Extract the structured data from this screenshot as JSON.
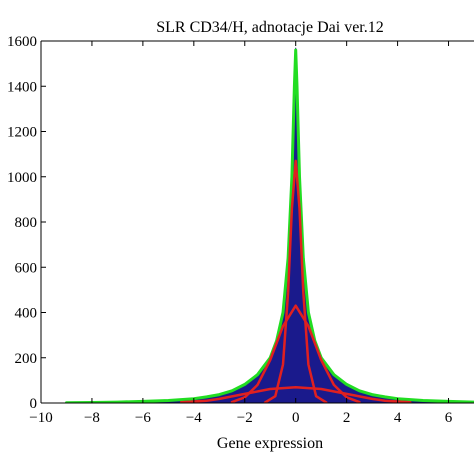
{
  "chart_data": {
    "type": "area",
    "title": "SLR CD34/H, adnotacje Dai ver.12",
    "xlabel": "Gene expression",
    "ylabel": "",
    "xlim": [
      -10,
      7
    ],
    "ylim": [
      0,
      1600
    ],
    "xticks": [
      -10,
      -8,
      -6,
      -4,
      -2,
      0,
      2,
      4,
      6
    ],
    "yticks": [
      0,
      200,
      400,
      600,
      800,
      1000,
      1200,
      1400,
      1600
    ],
    "xtick_labels": [
      "−10",
      "−8",
      "−6",
      "−4",
      "−2",
      "0",
      "2",
      "4",
      "6"
    ],
    "ytick_labels": [
      "0",
      "200",
      "400",
      "600",
      "800",
      "1000",
      "1200",
      "1400",
      "1600"
    ],
    "grid": false,
    "series": [
      {
        "role": "histogram",
        "color": "#1a1a8c",
        "x": [
          -9,
          -8,
          -7,
          -6,
          -5,
          -4,
          -3.5,
          -3,
          -2.5,
          -2,
          -1.5,
          -1,
          -0.75,
          -0.5,
          -0.3,
          -0.15,
          -0.05,
          0,
          0.05,
          0.15,
          0.3,
          0.5,
          0.75,
          1,
          1.5,
          2,
          2.5,
          3,
          3.5,
          4,
          5,
          6,
          7
        ],
        "values": [
          2,
          3,
          5,
          8,
          12,
          20,
          28,
          38,
          55,
          80,
          120,
          190,
          260,
          380,
          600,
          950,
          1350,
          1570,
          1350,
          950,
          600,
          380,
          260,
          190,
          120,
          80,
          55,
          38,
          28,
          20,
          12,
          8,
          5
        ]
      },
      {
        "role": "mixture-total",
        "color": "#22dd22",
        "x": [
          -9,
          -8,
          -7,
          -6,
          -5,
          -4,
          -3.5,
          -3,
          -2.5,
          -2,
          -1.5,
          -1,
          -0.75,
          -0.5,
          -0.3,
          -0.15,
          -0.05,
          0,
          0.05,
          0.15,
          0.3,
          0.5,
          0.75,
          1,
          1.5,
          2,
          2.5,
          3,
          3.5,
          4,
          5,
          6,
          7
        ],
        "values": [
          1,
          2,
          4,
          7,
          11,
          19,
          27,
          37,
          54,
          82,
          125,
          200,
          275,
          400,
          640,
          1000,
          1400,
          1560,
          1400,
          1000,
          640,
          400,
          275,
          200,
          125,
          82,
          54,
          37,
          27,
          19,
          11,
          7,
          4
        ]
      },
      {
        "role": "component-narrow",
        "color": "#e02020",
        "x": [
          -1.2,
          -0.8,
          -0.5,
          -0.3,
          -0.15,
          0,
          0.15,
          0.3,
          0.5,
          0.8,
          1.2
        ],
        "values": [
          2,
          30,
          170,
          490,
          860,
          1070,
          860,
          490,
          170,
          30,
          2
        ]
      },
      {
        "role": "component-medium",
        "color": "#e02020",
        "x": [
          -2.5,
          -2,
          -1.5,
          -1,
          -0.5,
          0,
          0.5,
          1,
          1.5,
          2,
          2.5
        ],
        "values": [
          4,
          25,
          80,
          190,
          340,
          430,
          340,
          190,
          80,
          25,
          4
        ]
      },
      {
        "role": "component-wide",
        "color": "#e02020",
        "x": [
          -4.5,
          -3.5,
          -3,
          -2,
          -1,
          0,
          1,
          2,
          3,
          3.5,
          4.5
        ],
        "values": [
          3,
          10,
          18,
          40,
          62,
          70,
          62,
          40,
          18,
          10,
          3
        ]
      }
    ]
  }
}
